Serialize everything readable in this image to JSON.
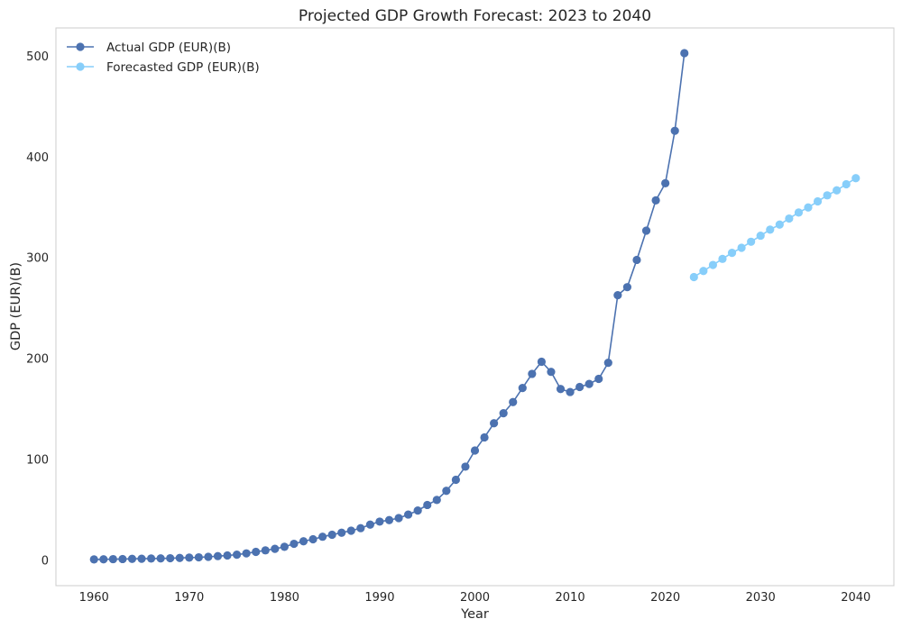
{
  "chart_data": {
    "type": "line",
    "title": "Projected GDP Growth Forecast: 2023 to 2040",
    "xlabel": "Year",
    "ylabel": "GDP (EUR)(B)",
    "xlim": [
      1956,
      2044
    ],
    "ylim": [
      -25,
      528
    ],
    "xticks": [
      1960,
      1970,
      1980,
      1990,
      2000,
      2010,
      2020,
      2030,
      2040
    ],
    "yticks": [
      0,
      100,
      200,
      300,
      400,
      500
    ],
    "grid": false,
    "legend_position": "top-left",
    "series": [
      {
        "name": "Actual GDP (EUR)(B)",
        "color": "#4c72b0",
        "marker": "circle",
        "x": [
          1960,
          1961,
          1962,
          1963,
          1964,
          1965,
          1966,
          1967,
          1968,
          1969,
          1970,
          1971,
          1972,
          1973,
          1974,
          1975,
          1976,
          1977,
          1978,
          1979,
          1980,
          1981,
          1982,
          1983,
          1984,
          1985,
          1986,
          1987,
          1988,
          1989,
          1990,
          1991,
          1992,
          1993,
          1994,
          1995,
          1996,
          1997,
          1998,
          1999,
          2000,
          2001,
          2002,
          2003,
          2004,
          2005,
          2006,
          2007,
          2008,
          2009,
          2010,
          2011,
          2012,
          2013,
          2014,
          2015,
          2016,
          2017,
          2018,
          2019,
          2020,
          2021,
          2022
        ],
        "y": [
          1.0,
          1.1,
          1.3,
          1.4,
          1.6,
          1.7,
          1.9,
          2.0,
          2.2,
          2.5,
          2.8,
          3.1,
          3.6,
          4.3,
          4.9,
          5.7,
          7.0,
          8.5,
          10.0,
          11.5,
          13.5,
          16.5,
          19.0,
          21.0,
          23.5,
          25.5,
          27.5,
          29.5,
          32.0,
          35.5,
          38.5,
          40.0,
          42.0,
          45.5,
          49.5,
          55.0,
          60.0,
          69.0,
          80.0,
          93.0,
          109.0,
          122.0,
          136.0,
          146.0,
          157.0,
          171.0,
          185.0,
          197.0,
          187.0,
          170.0,
          167.0,
          172.0,
          175.0,
          180.0,
          196.0,
          263.0,
          271.0,
          298.0,
          327.0,
          357.0,
          374.0,
          426.0,
          503.0
        ]
      },
      {
        "name": "Forecasted GDP (EUR)(B)",
        "color": "#87cefa",
        "marker": "circle",
        "x": [
          2023,
          2024,
          2025,
          2026,
          2027,
          2028,
          2029,
          2030,
          2031,
          2032,
          2033,
          2034,
          2035,
          2036,
          2037,
          2038,
          2039,
          2040
        ],
        "y": [
          281.0,
          287.0,
          293.0,
          299.0,
          305.0,
          310.0,
          316.0,
          322.0,
          328.0,
          333.0,
          339.0,
          345.0,
          350.0,
          356.0,
          362.0,
          367.0,
          373.0,
          379.0
        ]
      }
    ]
  }
}
